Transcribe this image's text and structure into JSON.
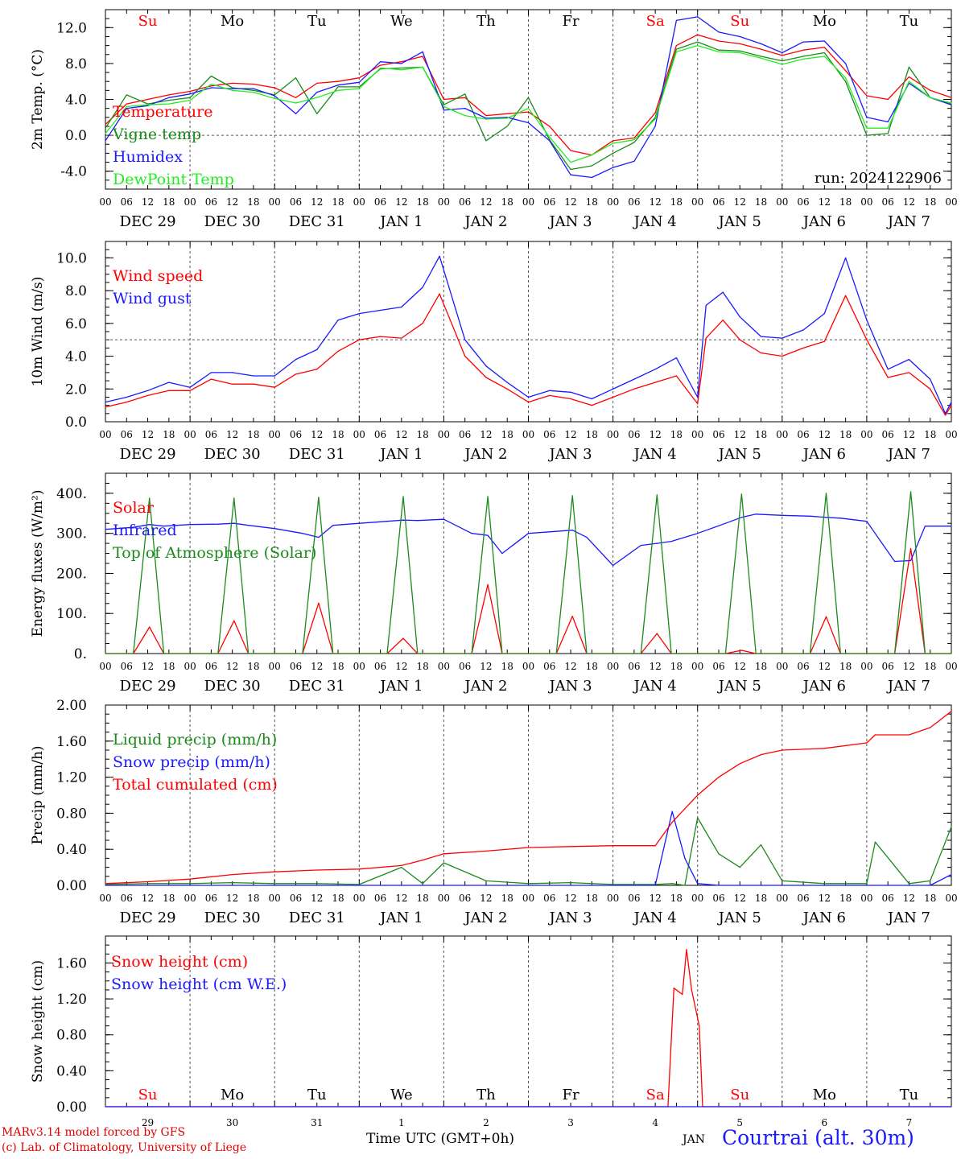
{
  "colors": {
    "red": "#ff0000",
    "blue": "#1a1aff",
    "green": "#1a8a1a",
    "lightgreen": "#22ee22",
    "axis": "#000000",
    "grid": "#555555"
  },
  "time_axis": {
    "hour_ticks": [
      "00",
      "06",
      "12",
      "18"
    ],
    "final_tick": "00",
    "date_labels": [
      "DEC 29",
      "DEC 30",
      "DEC 31",
      "JAN  1",
      "JAN  2",
      "JAN  3",
      "JAN  4",
      "JAN  5",
      "JAN  6",
      "JAN  7"
    ],
    "weekdays": [
      "Su",
      "Mo",
      "Tu",
      "We",
      "Th",
      "Fr",
      "Sa",
      "Su",
      "Mo",
      "Tu"
    ],
    "weekend_color": "#ff0000",
    "weekday_color": "#000000",
    "bottom_day_numbers": [
      "29",
      "30",
      "31",
      "1",
      "2",
      "3",
      "4",
      "5",
      "6",
      "7"
    ]
  },
  "run_label": "run: 2024122906",
  "footer": {
    "model": "MARv3.14 model forced by GFS",
    "copyright": "(c) Lab. of Climatology, University of Liege",
    "time_label": "Time UTC (GMT+0h)",
    "month": "JAN",
    "site": "Courtrai (alt. 30m)"
  },
  "chart_data": [
    {
      "type": "line",
      "id": "temp",
      "ylabel": "2m Temp. (°C)",
      "ylim": [
        -6.0,
        14.0
      ],
      "yticks": [
        12.0,
        8.0,
        4.0,
        0.0,
        -4.0
      ],
      "yticklabels": [
        "12.0",
        "8.0",
        "4.0",
        "0.0",
        "-4.0"
      ],
      "reference_line": 0.0,
      "x_days": [
        0,
        0.25,
        0.5,
        0.75,
        1.0,
        1.25,
        1.5,
        1.75,
        2.0,
        2.25,
        2.5,
        2.75,
        3.0,
        3.25,
        3.5,
        3.75,
        4.0,
        4.25,
        4.5,
        4.75,
        5.0,
        5.25,
        5.5,
        5.75,
        6.0,
        6.25,
        6.5,
        6.75,
        7.0,
        7.25,
        7.5,
        7.75,
        8.0,
        8.25,
        8.5,
        8.75,
        9.0,
        9.25,
        9.5,
        9.75,
        10.0
      ],
      "series": [
        {
          "name": "Temperature",
          "color": "#ff0000",
          "values": [
            1.2,
            3.5,
            4.0,
            4.5,
            4.9,
            5.5,
            5.8,
            5.7,
            5.3,
            4.2,
            5.8,
            6.0,
            6.4,
            7.8,
            8.2,
            8.8,
            4.0,
            4.2,
            2.2,
            2.4,
            2.6,
            1.0,
            -1.7,
            -2.2,
            -0.6,
            -0.3,
            2.5,
            10.0,
            11.2,
            10.5,
            10.2,
            9.6,
            8.9,
            9.5,
            9.8,
            7.2,
            4.4,
            4.0,
            6.5,
            5.0,
            4.2
          ]
        },
        {
          "name": "Vigne temp",
          "color": "#1a8a1a",
          "values": [
            0.8,
            4.5,
            3.5,
            3.9,
            4.2,
            6.6,
            5.3,
            5.0,
            4.5,
            6.4,
            2.4,
            5.4,
            5.4,
            7.4,
            7.5,
            7.6,
            3.4,
            4.6,
            -0.6,
            1.0,
            4.2,
            -0.5,
            -3.8,
            -3.4,
            -2.0,
            -0.8,
            2.0,
            9.6,
            10.4,
            9.5,
            9.4,
            8.8,
            8.3,
            8.8,
            9.2,
            6.0,
            0.0,
            0.2,
            7.6,
            4.2,
            3.5
          ]
        },
        {
          "name": "Humidex",
          "color": "#1a1aff",
          "values": [
            -0.6,
            3.0,
            3.3,
            4.2,
            4.6,
            5.3,
            5.2,
            5.2,
            4.4,
            2.4,
            4.8,
            5.6,
            5.9,
            8.2,
            8.0,
            9.3,
            2.8,
            3.0,
            1.9,
            2.0,
            1.4,
            -0.6,
            -4.4,
            -4.7,
            -3.6,
            -2.9,
            1.0,
            12.8,
            13.2,
            11.5,
            11.0,
            10.2,
            9.2,
            10.4,
            10.5,
            8.0,
            2.0,
            1.5,
            5.8,
            4.2,
            3.4
          ]
        },
        {
          "name": "DewPoint Temp",
          "color": "#22ee22",
          "values": [
            0.2,
            3.2,
            3.4,
            3.5,
            3.9,
            5.7,
            5.0,
            4.8,
            4.1,
            3.6,
            4.2,
            5.0,
            5.2,
            7.5,
            7.3,
            7.6,
            3.2,
            2.2,
            1.8,
            1.9,
            3.0,
            -0.2,
            -3.0,
            -2.2,
            -0.9,
            -0.5,
            1.8,
            9.3,
            10.0,
            9.3,
            9.2,
            8.6,
            7.9,
            8.5,
            8.8,
            6.4,
            0.8,
            0.8,
            6.0,
            4.2,
            3.6
          ]
        }
      ]
    },
    {
      "type": "line",
      "id": "wind",
      "ylabel": "10m Wind (m/s)",
      "ylim": [
        0.0,
        11.0
      ],
      "yticks": [
        10.0,
        8.0,
        6.0,
        4.0,
        2.0,
        0.0
      ],
      "yticklabels": [
        "10.0",
        "8.0",
        "6.0",
        "4.0",
        "2.0",
        "0.0"
      ],
      "reference_line": 5.0,
      "x_days": [
        0,
        0.25,
        0.5,
        0.75,
        1.0,
        1.25,
        1.5,
        1.75,
        2.0,
        2.25,
        2.5,
        2.75,
        3.0,
        3.25,
        3.5,
        3.75,
        3.95,
        4.25,
        4.5,
        4.75,
        5.0,
        5.25,
        5.5,
        5.75,
        6.0,
        6.25,
        6.5,
        6.75,
        7.0,
        7.1,
        7.3,
        7.5,
        7.75,
        8.0,
        8.25,
        8.5,
        8.75,
        9.0,
        9.25,
        9.5,
        9.75,
        9.93,
        10.0
      ],
      "series": [
        {
          "name": "Wind speed",
          "color": "#ff0000",
          "values": [
            0.9,
            1.2,
            1.6,
            1.9,
            1.9,
            2.6,
            2.3,
            2.3,
            2.1,
            2.9,
            3.2,
            4.3,
            5.0,
            5.2,
            5.1,
            6.0,
            7.8,
            4.0,
            2.7,
            2.0,
            1.2,
            1.6,
            1.4,
            1.0,
            1.5,
            2.0,
            2.4,
            2.8,
            1.1,
            5.1,
            6.2,
            5.0,
            4.2,
            4.0,
            4.5,
            4.9,
            7.7,
            5.0,
            2.7,
            3.0,
            2.0,
            0.4,
            1.0
          ]
        },
        {
          "name": "Wind gust",
          "color": "#1a1aff",
          "values": [
            1.2,
            1.5,
            1.9,
            2.4,
            2.1,
            3.0,
            3.0,
            2.8,
            2.8,
            3.8,
            4.4,
            6.2,
            6.6,
            6.8,
            7.0,
            8.2,
            10.1,
            5.0,
            3.4,
            2.4,
            1.5,
            1.9,
            1.8,
            1.4,
            2.0,
            2.6,
            3.2,
            3.9,
            1.5,
            7.1,
            7.9,
            6.4,
            5.2,
            5.1,
            5.6,
            6.6,
            10.0,
            6.2,
            3.2,
            3.8,
            2.6,
            0.5,
            1.2
          ]
        }
      ]
    },
    {
      "type": "line",
      "id": "energy",
      "ylabel": "Energy fluxes (W/m²)",
      "ylim": [
        0,
        450
      ],
      "yticks": [
        400,
        300,
        200,
        100,
        0
      ],
      "yticklabels": [
        "400.",
        "300.",
        "200.",
        "100.",
        "0."
      ],
      "reference_line": null,
      "x_days": [
        0.0,
        0.33,
        0.52,
        0.69,
        1.0,
        1.33,
        1.52,
        1.69,
        2.0,
        2.33,
        2.52,
        2.69,
        3.0,
        3.33,
        3.52,
        3.69,
        4.0,
        4.33,
        4.52,
        4.69,
        5.0,
        5.33,
        5.52,
        5.69,
        6.0,
        6.33,
        6.52,
        6.69,
        7.0,
        7.33,
        7.52,
        7.69,
        8.0,
        8.33,
        8.52,
        8.69,
        9.0,
        9.33,
        9.52,
        9.69,
        10.0
      ],
      "series": [
        {
          "name": "Solar",
          "color": "#ff0000",
          "values": [
            0,
            0,
            66,
            0,
            0,
            0,
            82,
            0,
            0,
            0,
            126,
            0,
            0,
            0,
            38,
            0,
            0,
            0,
            172,
            0,
            0,
            0,
            93,
            0,
            0,
            0,
            50,
            0,
            0,
            0,
            8,
            0,
            0,
            0,
            92,
            0,
            0,
            0,
            262,
            0,
            0
          ]
        },
        {
          "name": "Infrared",
          "color": "#1a1aff",
          "values": [
            310,
            315,
            322,
            318,
            322,
            323,
            325,
            320,
            312,
            300,
            290,
            320,
            325,
            330,
            333,
            332,
            335,
            300,
            295,
            250,
            300,
            305,
            308,
            290,
            220,
            270,
            275,
            280,
            300,
            325,
            340,
            348,
            345,
            343,
            340,
            338,
            330,
            230,
            232,
            318,
            318
          ]
        },
        {
          "name": "Top of Atmosphere (Solar)",
          "color": "#1a8a1a",
          "values": [
            0,
            0,
            388,
            0,
            0,
            0,
            388,
            0,
            0,
            0,
            390,
            0,
            0,
            0,
            392,
            0,
            0,
            0,
            392,
            0,
            0,
            0,
            394,
            0,
            0,
            0,
            396,
            0,
            0,
            0,
            398,
            0,
            0,
            0,
            400,
            0,
            0,
            0,
            404,
            0,
            0
          ]
        }
      ]
    },
    {
      "type": "line",
      "id": "precip",
      "ylabel": "Precip (mm/h)",
      "ylim": [
        0.0,
        2.0
      ],
      "yticks": [
        2.0,
        1.6,
        1.2,
        0.8,
        0.4,
        0.0
      ],
      "yticklabels": [
        "2.00",
        "1.60",
        "1.20",
        "0.80",
        "0.40",
        "0.00"
      ],
      "reference_line": null,
      "x_days": [
        0,
        0.5,
        1.0,
        1.5,
        2.0,
        2.5,
        3.0,
        3.5,
        3.75,
        4.0,
        4.5,
        5.0,
        5.5,
        6.0,
        6.5,
        6.7,
        6.85,
        7.0,
        7.25,
        7.5,
        7.75,
        8.0,
        8.5,
        9.0,
        9.1,
        9.5,
        9.75,
        10.0
      ],
      "series": [
        {
          "name": "Liquid precip (mm/h)",
          "color": "#1a8a1a",
          "values": [
            0.01,
            0.02,
            0.02,
            0.03,
            0.02,
            0.02,
            0.01,
            0.2,
            0.02,
            0.25,
            0.05,
            0.02,
            0.03,
            0.01,
            0.01,
            0.02,
            0.0,
            0.75,
            0.35,
            0.2,
            0.45,
            0.05,
            0.02,
            0.02,
            0.48,
            0.02,
            0.05,
            0.65
          ]
        },
        {
          "name": "Snow precip (mm/h)",
          "color": "#1a1aff",
          "values": [
            0,
            0,
            0,
            0,
            0,
            0,
            0,
            0,
            0,
            0,
            0,
            0,
            0,
            0,
            0,
            0.82,
            0.3,
            0.02,
            0,
            0,
            0,
            0,
            0,
            0,
            0,
            0,
            0,
            0.12
          ]
        },
        {
          "name": "Total cumulated (cm)",
          "color": "#ff0000",
          "values": [
            0.02,
            0.04,
            0.07,
            0.12,
            0.15,
            0.17,
            0.18,
            0.22,
            0.28,
            0.35,
            0.38,
            0.42,
            0.43,
            0.44,
            0.44,
            0.7,
            0.85,
            1.0,
            1.2,
            1.35,
            1.45,
            1.5,
            1.52,
            1.58,
            1.67,
            1.67,
            1.75,
            1.93
          ]
        }
      ]
    },
    {
      "type": "line",
      "id": "snow",
      "ylabel": "Snow height (cm)",
      "ylim": [
        0.0,
        1.9
      ],
      "yticks": [
        1.6,
        1.2,
        0.8,
        0.4,
        0.0
      ],
      "yticklabels": [
        "1.60",
        "1.20",
        "0.80",
        "0.40",
        "0.00"
      ],
      "reference_line": null,
      "x_days": [
        0,
        6.65,
        6.72,
        6.82,
        6.87,
        6.93,
        7.02,
        7.06,
        10.0
      ],
      "series": [
        {
          "name": "Snow height (cm)",
          "color": "#ff0000",
          "values": [
            0,
            0,
            1.32,
            1.25,
            1.75,
            1.3,
            0.9,
            0,
            0
          ]
        },
        {
          "name": "Snow height (cm W.E.)",
          "color": "#1a1aff",
          "values": [
            0,
            0,
            0,
            0,
            0,
            0,
            0,
            0,
            0
          ]
        }
      ]
    }
  ]
}
